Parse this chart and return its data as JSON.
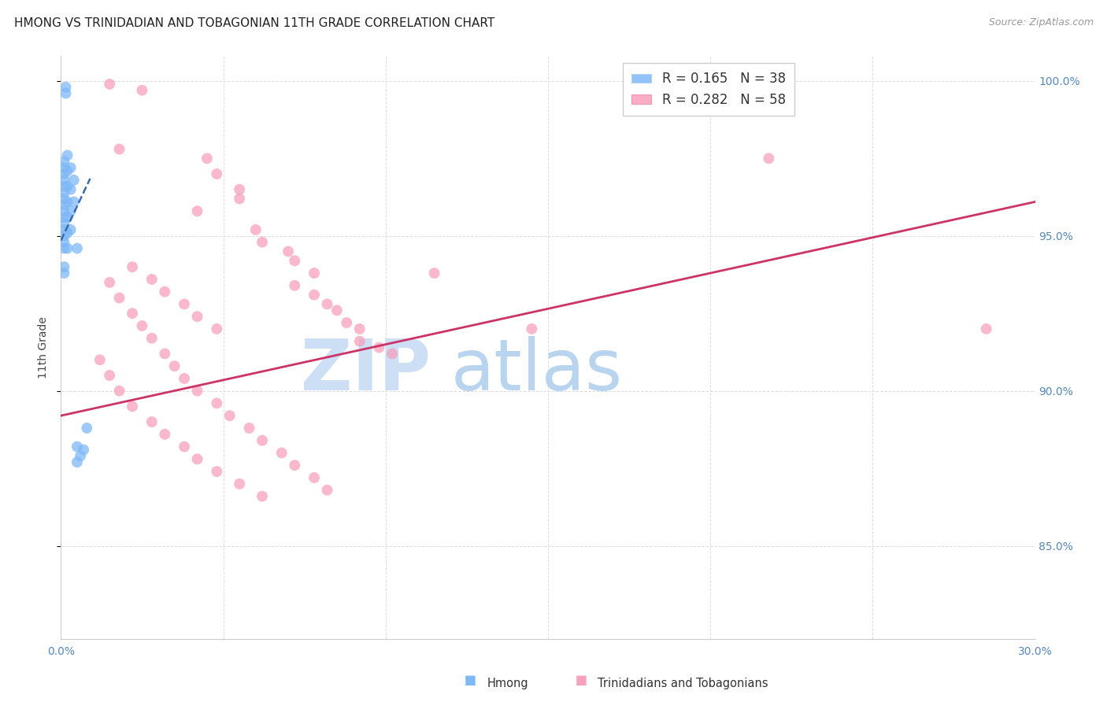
{
  "title": "HMONG VS TRINIDADIAN AND TOBAGONIAN 11TH GRADE CORRELATION CHART",
  "source": "Source: ZipAtlas.com",
  "ylabel": "11th Grade",
  "xlim": [
    0.0,
    0.3
  ],
  "ylim": [
    0.82,
    1.008
  ],
  "xtick_values": [
    0.0,
    0.05,
    0.1,
    0.15,
    0.2,
    0.25,
    0.3
  ],
  "xtick_labels_show": [
    "0.0%",
    "",
    "",
    "",
    "",
    "",
    "30.0%"
  ],
  "ytick_values": [
    0.85,
    0.9,
    0.95,
    1.0
  ],
  "ytick_labels": [
    "85.0%",
    "90.0%",
    "95.0%",
    "100.0%"
  ],
  "hmong_color": "#7EB8F7",
  "tnt_color": "#F8A0BC",
  "hmong_line_color": "#3a6aaa",
  "tnt_line_color": "#cc3366",
  "background_color": "#ffffff",
  "grid_color": "#dddddd",
  "title_color": "#222222",
  "tick_color": "#5588bb",
  "hmong_points": [
    [
      0.0015,
      0.998
    ],
    [
      0.0015,
      0.996
    ],
    [
      0.001,
      0.974
    ],
    [
      0.001,
      0.972
    ],
    [
      0.001,
      0.97
    ],
    [
      0.001,
      0.968
    ],
    [
      0.001,
      0.966
    ],
    [
      0.001,
      0.964
    ],
    [
      0.001,
      0.962
    ],
    [
      0.001,
      0.96
    ],
    [
      0.001,
      0.958
    ],
    [
      0.001,
      0.956
    ],
    [
      0.001,
      0.954
    ],
    [
      0.001,
      0.952
    ],
    [
      0.001,
      0.95
    ],
    [
      0.001,
      0.948
    ],
    [
      0.001,
      0.946
    ],
    [
      0.002,
      0.976
    ],
    [
      0.002,
      0.971
    ],
    [
      0.002,
      0.966
    ],
    [
      0.002,
      0.961
    ],
    [
      0.002,
      0.956
    ],
    [
      0.002,
      0.951
    ],
    [
      0.002,
      0.946
    ],
    [
      0.003,
      0.972
    ],
    [
      0.003,
      0.965
    ],
    [
      0.003,
      0.958
    ],
    [
      0.003,
      0.952
    ],
    [
      0.004,
      0.968
    ],
    [
      0.004,
      0.961
    ],
    [
      0.005,
      0.946
    ],
    [
      0.005,
      0.882
    ],
    [
      0.005,
      0.877
    ],
    [
      0.006,
      0.879
    ],
    [
      0.007,
      0.881
    ],
    [
      0.008,
      0.888
    ],
    [
      0.001,
      0.94
    ],
    [
      0.001,
      0.938
    ]
  ],
  "tnt_points": [
    [
      0.015,
      0.999
    ],
    [
      0.025,
      0.997
    ],
    [
      0.018,
      0.978
    ],
    [
      0.045,
      0.975
    ],
    [
      0.048,
      0.97
    ],
    [
      0.055,
      0.965
    ],
    [
      0.055,
      0.962
    ],
    [
      0.042,
      0.958
    ],
    [
      0.06,
      0.952
    ],
    [
      0.062,
      0.948
    ],
    [
      0.07,
      0.945
    ],
    [
      0.072,
      0.942
    ],
    [
      0.078,
      0.938
    ],
    [
      0.072,
      0.934
    ],
    [
      0.078,
      0.931
    ],
    [
      0.082,
      0.928
    ],
    [
      0.085,
      0.926
    ],
    [
      0.088,
      0.922
    ],
    [
      0.092,
      0.92
    ],
    [
      0.092,
      0.916
    ],
    [
      0.098,
      0.914
    ],
    [
      0.102,
      0.912
    ],
    [
      0.028,
      0.936
    ],
    [
      0.032,
      0.932
    ],
    [
      0.038,
      0.928
    ],
    [
      0.042,
      0.924
    ],
    [
      0.048,
      0.92
    ],
    [
      0.022,
      0.94
    ],
    [
      0.015,
      0.935
    ],
    [
      0.018,
      0.93
    ],
    [
      0.022,
      0.925
    ],
    [
      0.025,
      0.921
    ],
    [
      0.028,
      0.917
    ],
    [
      0.032,
      0.912
    ],
    [
      0.035,
      0.908
    ],
    [
      0.038,
      0.904
    ],
    [
      0.042,
      0.9
    ],
    [
      0.048,
      0.896
    ],
    [
      0.052,
      0.892
    ],
    [
      0.058,
      0.888
    ],
    [
      0.062,
      0.884
    ],
    [
      0.068,
      0.88
    ],
    [
      0.072,
      0.876
    ],
    [
      0.078,
      0.872
    ],
    [
      0.082,
      0.868
    ],
    [
      0.012,
      0.91
    ],
    [
      0.015,
      0.905
    ],
    [
      0.018,
      0.9
    ],
    [
      0.022,
      0.895
    ],
    [
      0.028,
      0.89
    ],
    [
      0.032,
      0.886
    ],
    [
      0.038,
      0.882
    ],
    [
      0.042,
      0.878
    ],
    [
      0.048,
      0.874
    ],
    [
      0.055,
      0.87
    ],
    [
      0.062,
      0.866
    ],
    [
      0.115,
      0.938
    ],
    [
      0.285,
      0.92
    ],
    [
      0.218,
      0.975
    ],
    [
      0.145,
      0.92
    ]
  ],
  "hmong_trendline_x": [
    0.0,
    0.009
  ],
  "hmong_trendline_y": [
    0.9485,
    0.9685
  ],
  "tnt_trendline_x": [
    0.0,
    0.3
  ],
  "tnt_trendline_y": [
    0.892,
    0.961
  ]
}
